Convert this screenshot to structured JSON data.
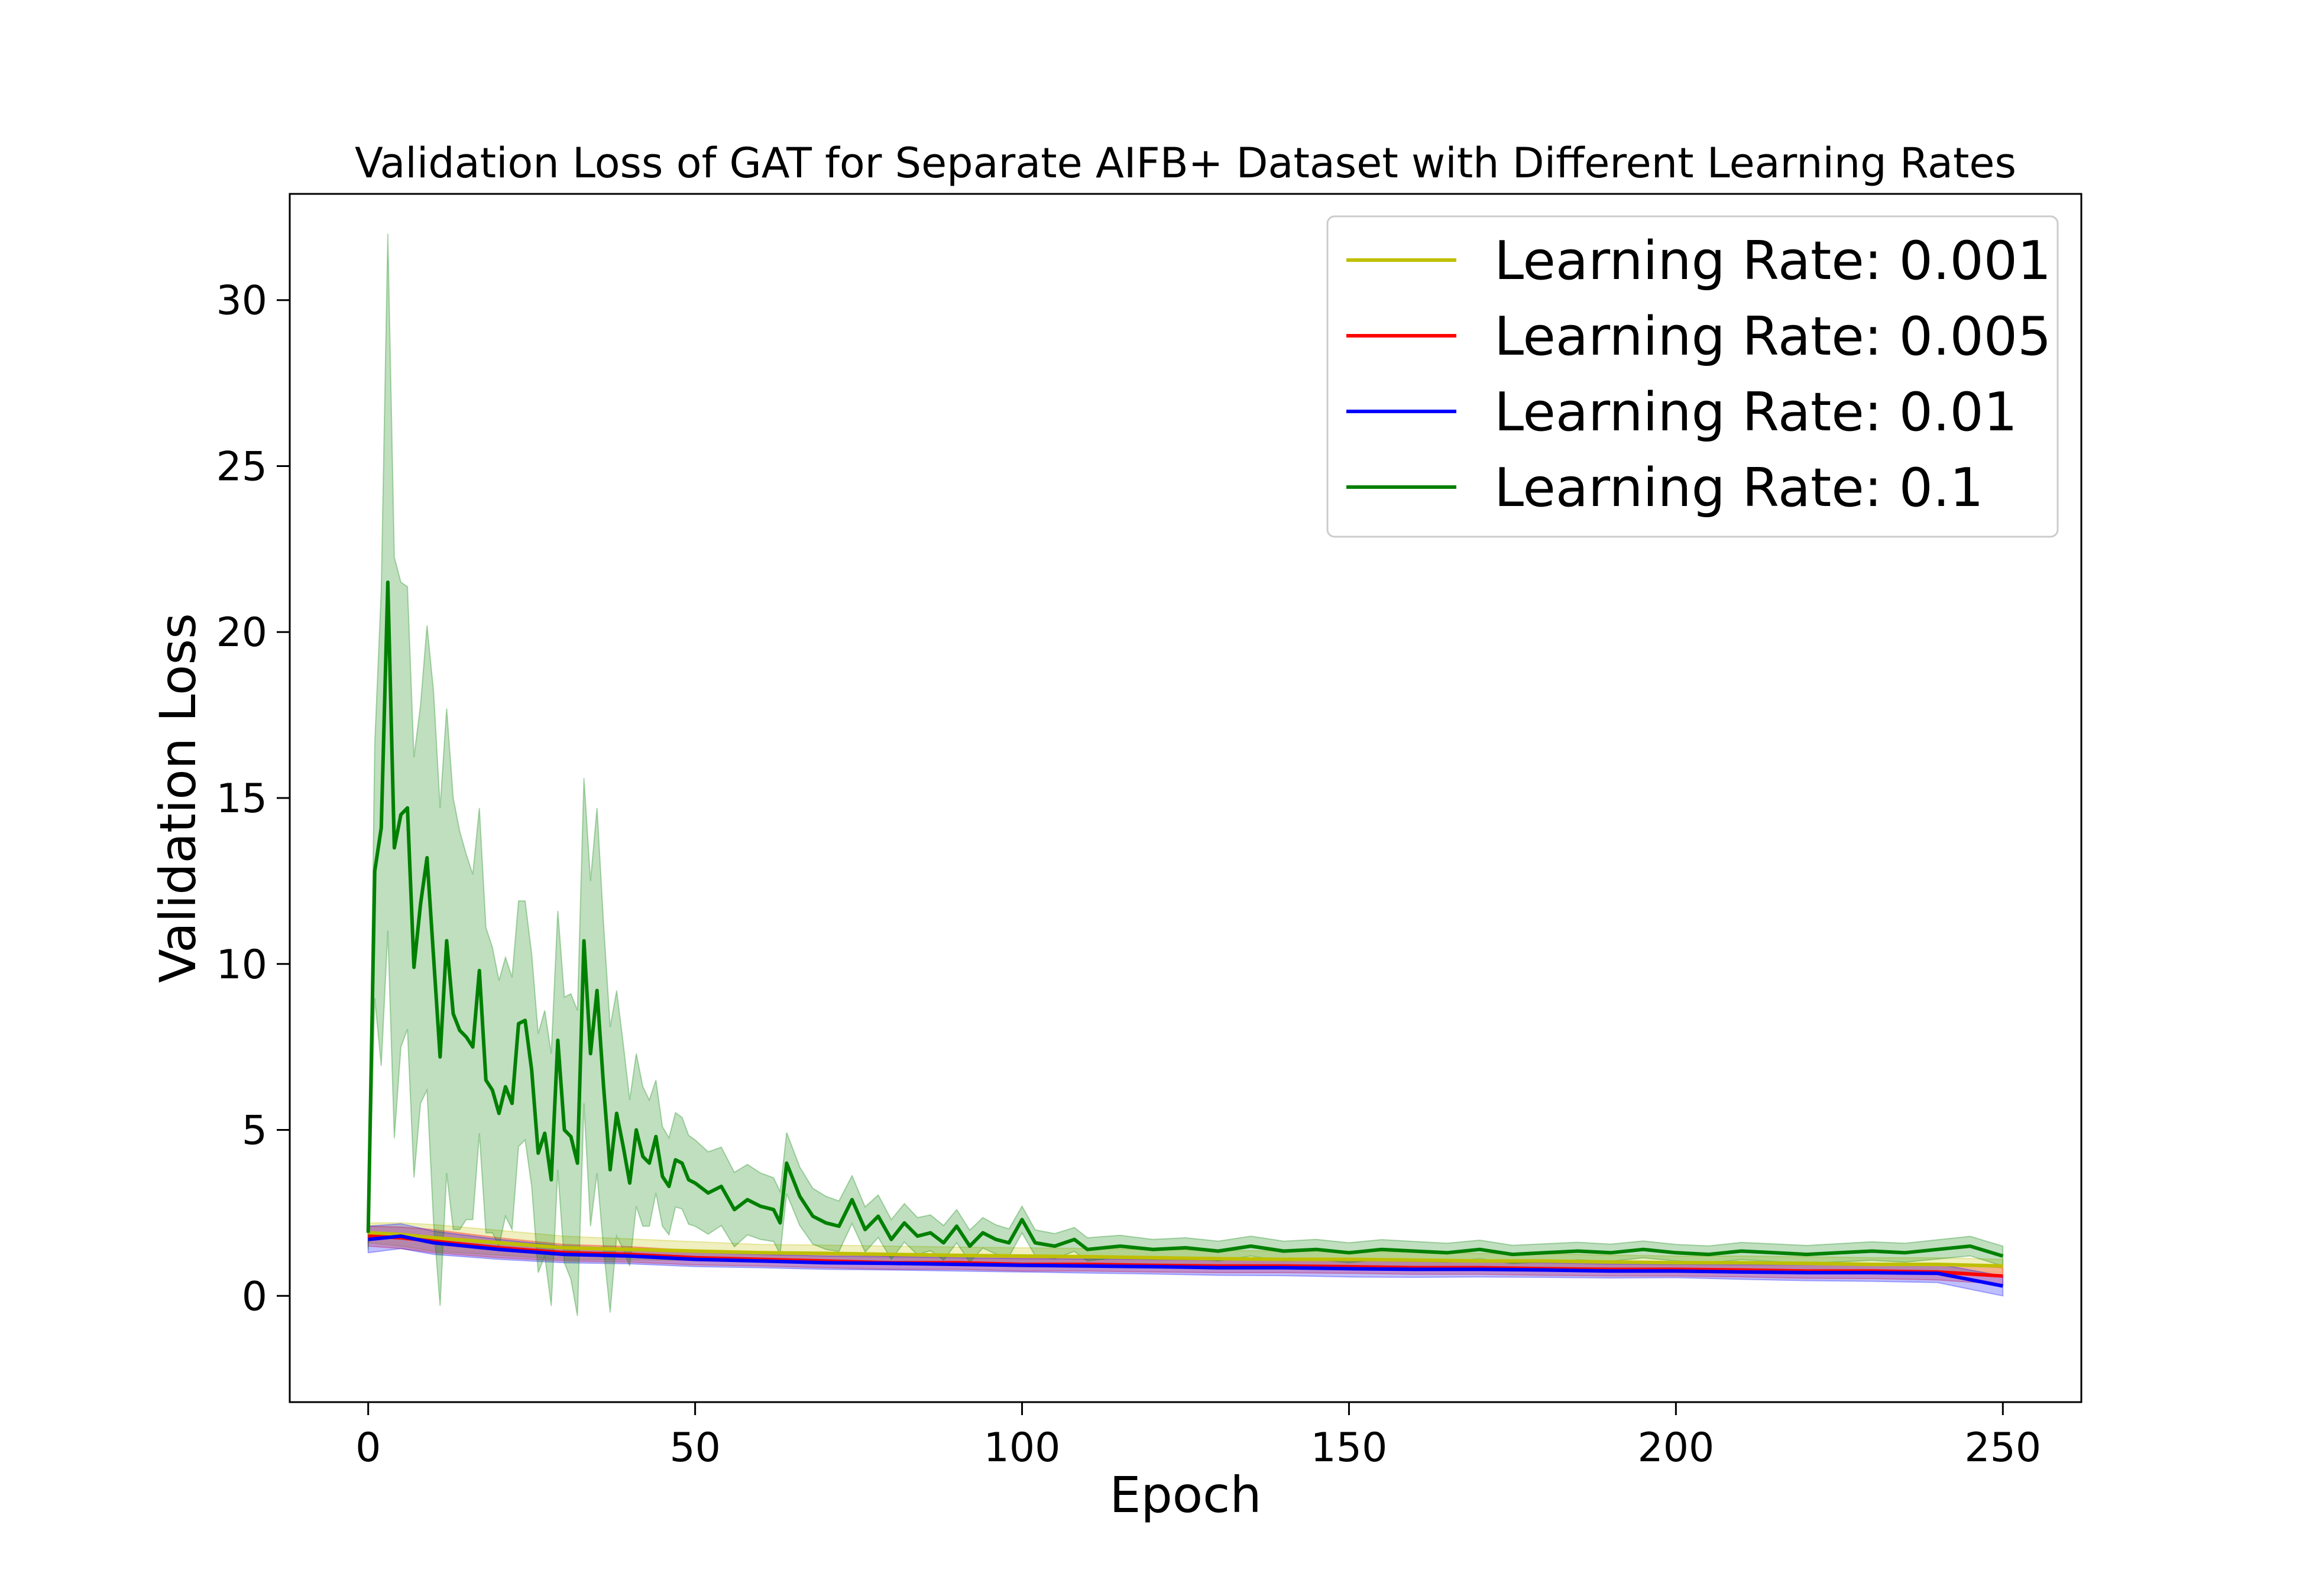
{
  "chart_data": {
    "type": "line",
    "title": "Validation Loss of GAT for Separate AIFB+ Dataset with Different Learning Rates",
    "xlabel": "Epoch",
    "ylabel": "Validation Loss",
    "xlim": [
      -12,
      262
    ],
    "ylim": [
      -3.2,
      33.2
    ],
    "xticks": [
      0,
      50,
      100,
      150,
      200,
      250
    ],
    "yticks": [
      0,
      5,
      10,
      15,
      20,
      25,
      30
    ],
    "grid": false,
    "legend_position": "top-right",
    "bands": "shaded region around each line = spread across runs",
    "series": [
      {
        "name": "Learning Rate: 0.001",
        "color": "#bfbf00",
        "points": [
          [
            0,
            1.9
          ],
          [
            5,
            1.85
          ],
          [
            10,
            1.75
          ],
          [
            20,
            1.6
          ],
          [
            30,
            1.45
          ],
          [
            40,
            1.4
          ],
          [
            50,
            1.35
          ],
          [
            60,
            1.3
          ],
          [
            70,
            1.28
          ],
          [
            80,
            1.25
          ],
          [
            90,
            1.22
          ],
          [
            100,
            1.2
          ],
          [
            110,
            1.18
          ],
          [
            120,
            1.15
          ],
          [
            130,
            1.12
          ],
          [
            140,
            1.1
          ],
          [
            150,
            1.1
          ],
          [
            160,
            1.08
          ],
          [
            170,
            1.05
          ],
          [
            180,
            1.05
          ],
          [
            190,
            1.02
          ],
          [
            200,
            1.0
          ],
          [
            210,
            1.0
          ],
          [
            220,
            0.98
          ],
          [
            230,
            0.95
          ],
          [
            240,
            0.95
          ],
          [
            250,
            0.9
          ]
        ],
        "band": [
          [
            0,
            0.3
          ],
          [
            10,
            0.4
          ],
          [
            30,
            0.35
          ],
          [
            60,
            0.25
          ],
          [
            100,
            0.25
          ],
          [
            150,
            0.25
          ],
          [
            200,
            0.2
          ],
          [
            250,
            0.2
          ]
        ]
      },
      {
        "name": "Learning Rate: 0.005",
        "color": "#ff0000",
        "points": [
          [
            0,
            1.8
          ],
          [
            5,
            1.75
          ],
          [
            10,
            1.65
          ],
          [
            20,
            1.45
          ],
          [
            30,
            1.3
          ],
          [
            40,
            1.25
          ],
          [
            50,
            1.15
          ],
          [
            60,
            1.1
          ],
          [
            70,
            1.05
          ],
          [
            80,
            1.0
          ],
          [
            90,
            1.0
          ],
          [
            100,
            0.95
          ],
          [
            110,
            0.95
          ],
          [
            120,
            0.92
          ],
          [
            130,
            0.9
          ],
          [
            140,
            0.9
          ],
          [
            150,
            0.88
          ],
          [
            160,
            0.85
          ],
          [
            170,
            0.85
          ],
          [
            180,
            0.82
          ],
          [
            190,
            0.8
          ],
          [
            200,
            0.8
          ],
          [
            210,
            0.78
          ],
          [
            220,
            0.75
          ],
          [
            230,
            0.75
          ],
          [
            240,
            0.72
          ],
          [
            250,
            0.6
          ]
        ],
        "band": [
          [
            0,
            0.3
          ],
          [
            10,
            0.35
          ],
          [
            30,
            0.25
          ],
          [
            60,
            0.2
          ],
          [
            100,
            0.2
          ],
          [
            150,
            0.2
          ],
          [
            200,
            0.2
          ],
          [
            250,
            0.25
          ]
        ]
      },
      {
        "name": "Learning Rate: 0.01",
        "color": "#0000ff",
        "points": [
          [
            0,
            1.7
          ],
          [
            5,
            1.8
          ],
          [
            10,
            1.6
          ],
          [
            20,
            1.4
          ],
          [
            30,
            1.25
          ],
          [
            40,
            1.2
          ],
          [
            50,
            1.1
          ],
          [
            60,
            1.05
          ],
          [
            70,
            1.0
          ],
          [
            80,
            0.98
          ],
          [
            90,
            0.95
          ],
          [
            100,
            0.92
          ],
          [
            110,
            0.9
          ],
          [
            120,
            0.88
          ],
          [
            130,
            0.85
          ],
          [
            140,
            0.85
          ],
          [
            150,
            0.82
          ],
          [
            160,
            0.8
          ],
          [
            170,
            0.8
          ],
          [
            180,
            0.78
          ],
          [
            190,
            0.75
          ],
          [
            200,
            0.75
          ],
          [
            210,
            0.72
          ],
          [
            220,
            0.7
          ],
          [
            230,
            0.7
          ],
          [
            240,
            0.68
          ],
          [
            250,
            0.3
          ]
        ],
        "band": [
          [
            0,
            0.4
          ],
          [
            10,
            0.35
          ],
          [
            30,
            0.25
          ],
          [
            60,
            0.2
          ],
          [
            100,
            0.2
          ],
          [
            150,
            0.25
          ],
          [
            200,
            0.2
          ],
          [
            250,
            0.3
          ]
        ]
      },
      {
        "name": "Learning Rate: 0.1",
        "color": "#008000",
        "points": [
          [
            0,
            1.9
          ],
          [
            1,
            12.8
          ],
          [
            2,
            14.1
          ],
          [
            3,
            21.5
          ],
          [
            4,
            13.5
          ],
          [
            5,
            14.5
          ],
          [
            6,
            14.7
          ],
          [
            7,
            9.9
          ],
          [
            8,
            11.8
          ],
          [
            9,
            13.2
          ],
          [
            10,
            10.2
          ],
          [
            11,
            7.2
          ],
          [
            12,
            10.7
          ],
          [
            13,
            8.5
          ],
          [
            14,
            8.0
          ],
          [
            15,
            7.8
          ],
          [
            16,
            7.5
          ],
          [
            17,
            9.8
          ],
          [
            18,
            6.5
          ],
          [
            19,
            6.2
          ],
          [
            20,
            5.5
          ],
          [
            21,
            6.3
          ],
          [
            22,
            5.8
          ],
          [
            23,
            8.2
          ],
          [
            24,
            8.3
          ],
          [
            25,
            6.8
          ],
          [
            26,
            4.3
          ],
          [
            27,
            4.9
          ],
          [
            28,
            3.5
          ],
          [
            29,
            7.7
          ],
          [
            30,
            5.0
          ],
          [
            31,
            4.8
          ],
          [
            32,
            4.0
          ],
          [
            33,
            10.7
          ],
          [
            34,
            7.3
          ],
          [
            35,
            9.2
          ],
          [
            36,
            6.3
          ],
          [
            37,
            3.8
          ],
          [
            38,
            5.5
          ],
          [
            39,
            4.5
          ],
          [
            40,
            3.4
          ],
          [
            41,
            5.0
          ],
          [
            42,
            4.2
          ],
          [
            43,
            4.0
          ],
          [
            44,
            4.8
          ],
          [
            45,
            3.6
          ],
          [
            46,
            3.3
          ],
          [
            47,
            4.1
          ],
          [
            48,
            4.0
          ],
          [
            49,
            3.5
          ],
          [
            50,
            3.4
          ],
          [
            52,
            3.1
          ],
          [
            54,
            3.3
          ],
          [
            56,
            2.6
          ],
          [
            58,
            2.9
          ],
          [
            60,
            2.7
          ],
          [
            62,
            2.6
          ],
          [
            63,
            2.2
          ],
          [
            64,
            4.0
          ],
          [
            66,
            3.0
          ],
          [
            68,
            2.4
          ],
          [
            70,
            2.2
          ],
          [
            72,
            2.1
          ],
          [
            74,
            2.9
          ],
          [
            76,
            2.0
          ],
          [
            78,
            2.4
          ],
          [
            80,
            1.7
          ],
          [
            82,
            2.2
          ],
          [
            84,
            1.8
          ],
          [
            86,
            1.9
          ],
          [
            88,
            1.6
          ],
          [
            90,
            2.1
          ],
          [
            92,
            1.5
          ],
          [
            94,
            1.9
          ],
          [
            96,
            1.7
          ],
          [
            98,
            1.6
          ],
          [
            100,
            2.3
          ],
          [
            102,
            1.6
          ],
          [
            105,
            1.5
          ],
          [
            108,
            1.7
          ],
          [
            110,
            1.4
          ],
          [
            115,
            1.5
          ],
          [
            120,
            1.4
          ],
          [
            125,
            1.45
          ],
          [
            130,
            1.35
          ],
          [
            135,
            1.5
          ],
          [
            140,
            1.35
          ],
          [
            145,
            1.4
          ],
          [
            150,
            1.3
          ],
          [
            155,
            1.4
          ],
          [
            160,
            1.35
          ],
          [
            165,
            1.3
          ],
          [
            170,
            1.4
          ],
          [
            175,
            1.25
          ],
          [
            180,
            1.3
          ],
          [
            185,
            1.35
          ],
          [
            190,
            1.3
          ],
          [
            195,
            1.4
          ],
          [
            200,
            1.3
          ],
          [
            205,
            1.25
          ],
          [
            210,
            1.35
          ],
          [
            215,
            1.3
          ],
          [
            220,
            1.25
          ],
          [
            225,
            1.3
          ],
          [
            230,
            1.35
          ],
          [
            235,
            1.3
          ],
          [
            240,
            1.4
          ],
          [
            245,
            1.5
          ],
          [
            250,
            1.2
          ]
        ],
        "band": [
          [
            0,
            0.5
          ],
          [
            3,
            10.5
          ],
          [
            5,
            7.0
          ],
          [
            8,
            6.0
          ],
          [
            10,
            8.0
          ],
          [
            15,
            5.5
          ],
          [
            20,
            4.0
          ],
          [
            25,
            3.5
          ],
          [
            30,
            4.0
          ],
          [
            35,
            5.5
          ],
          [
            40,
            2.5
          ],
          [
            45,
            1.5
          ],
          [
            50,
            1.3
          ],
          [
            60,
            1.0
          ],
          [
            70,
            0.8
          ],
          [
            80,
            0.6
          ],
          [
            90,
            0.5
          ],
          [
            100,
            0.4
          ],
          [
            120,
            0.3
          ],
          [
            150,
            0.3
          ],
          [
            200,
            0.25
          ],
          [
            250,
            0.3
          ]
        ]
      }
    ]
  }
}
